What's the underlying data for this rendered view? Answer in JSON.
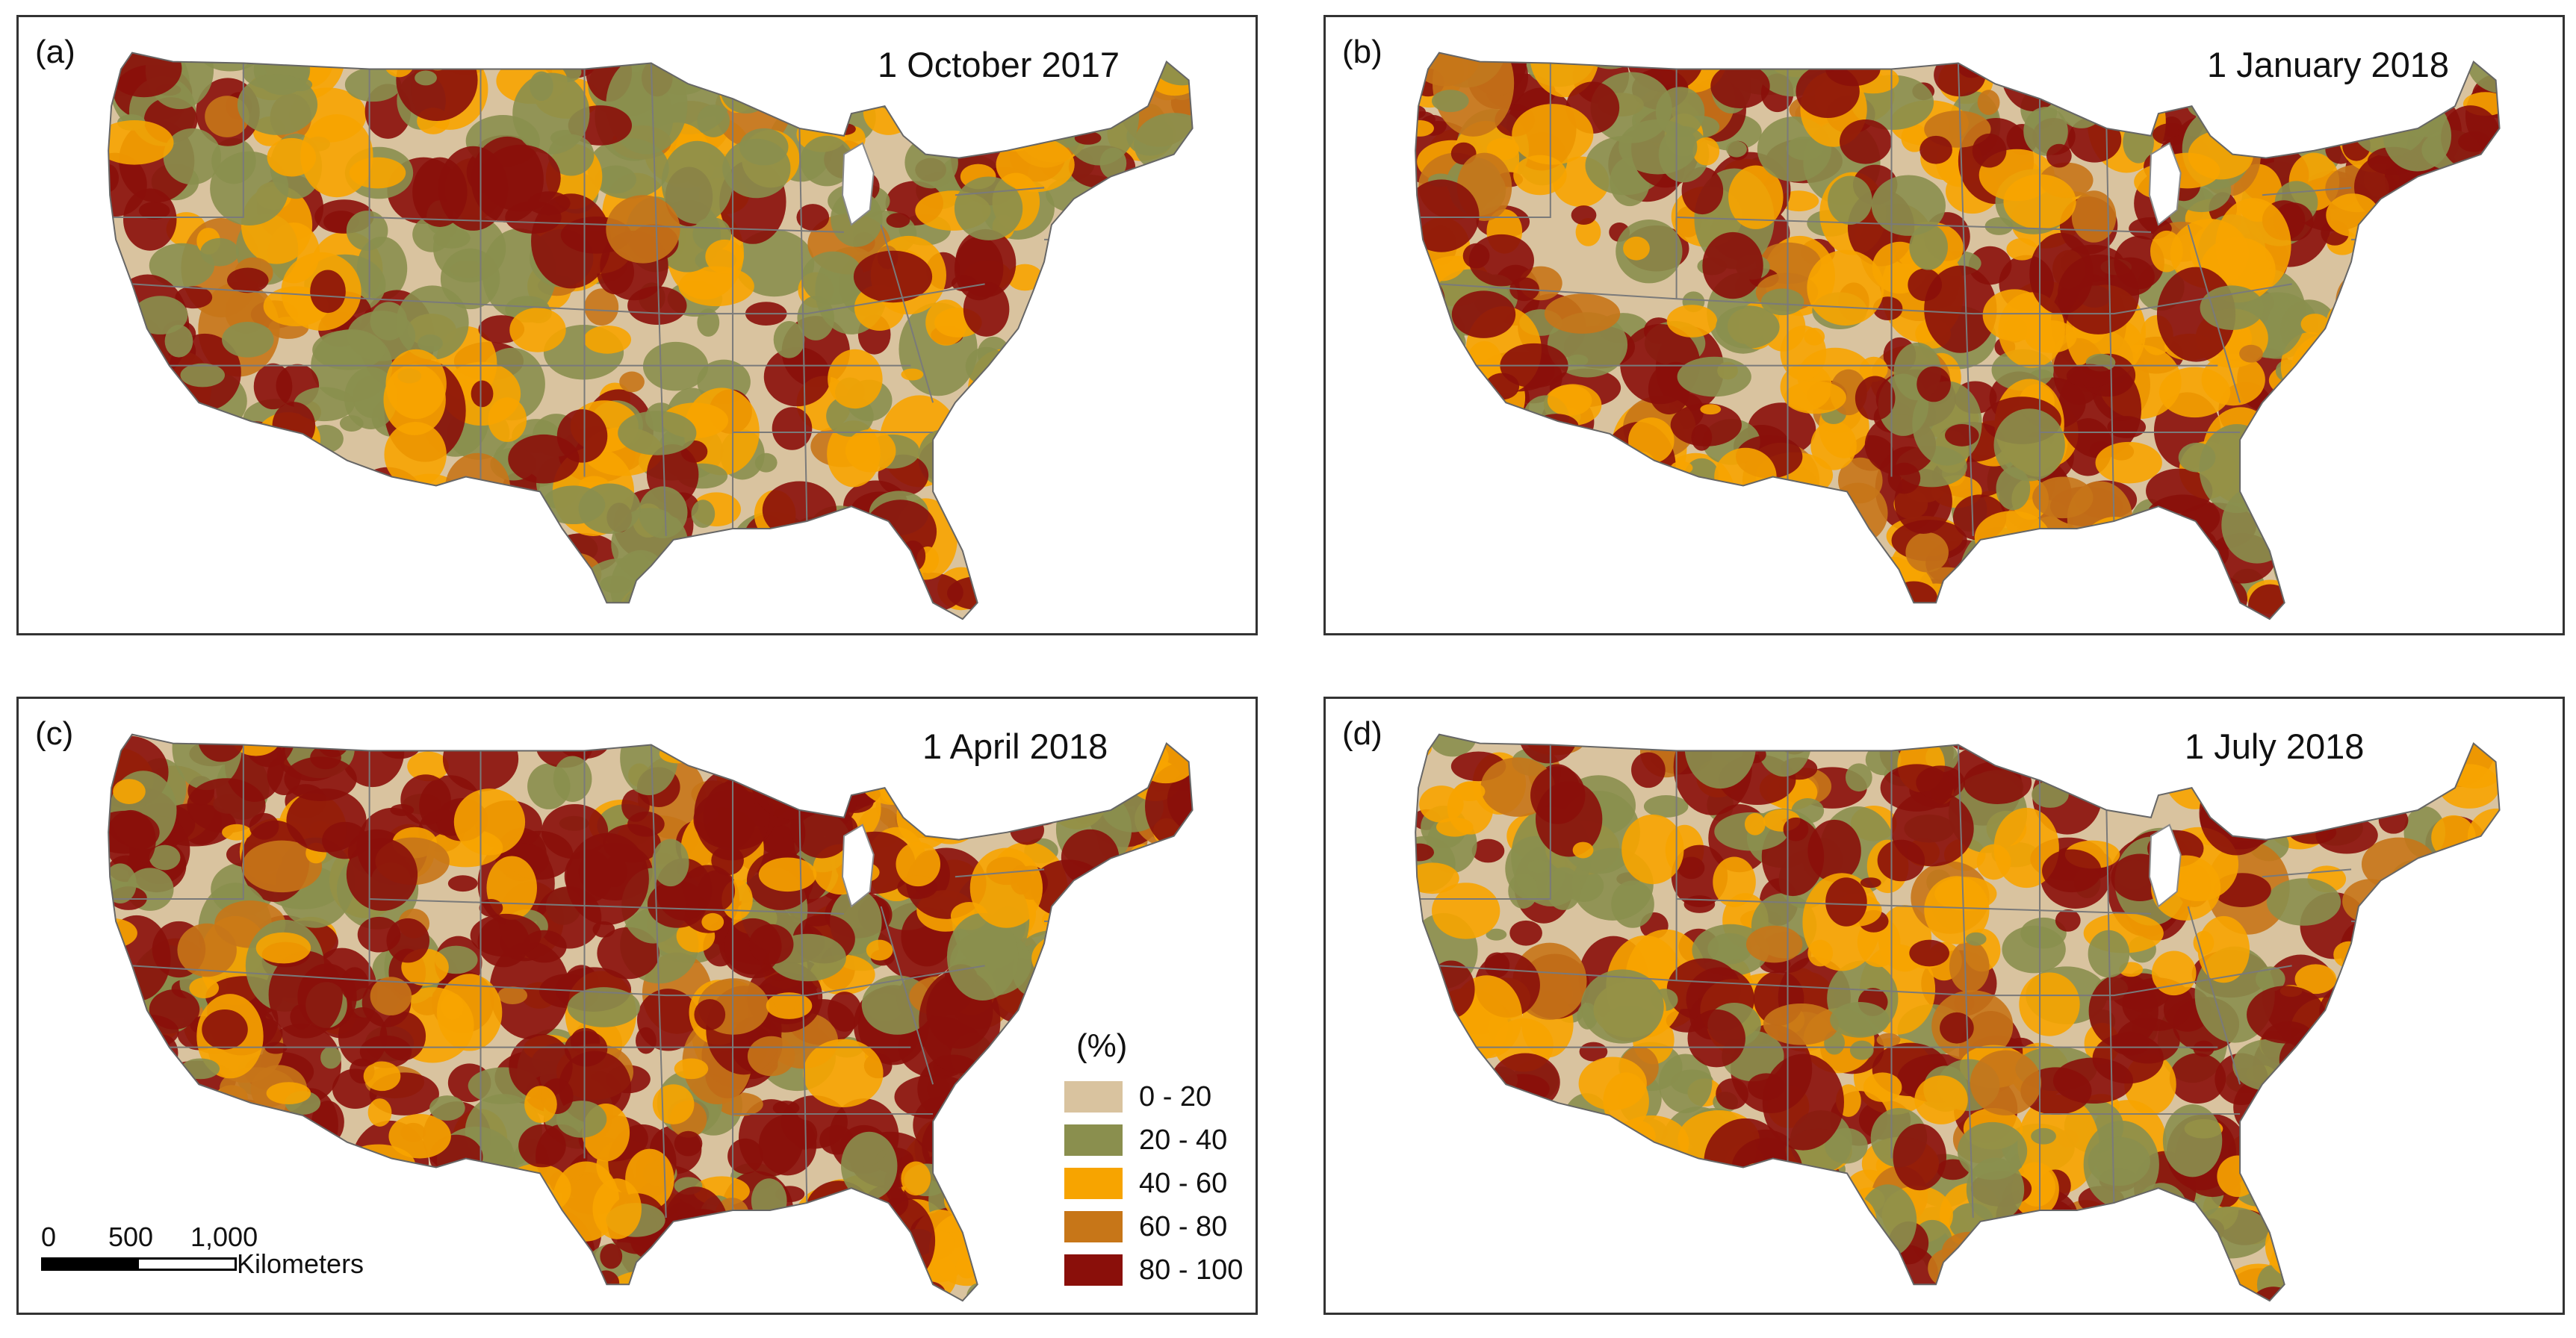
{
  "panels": [
    {
      "letter": "(a)",
      "date": "1 October 2017"
    },
    {
      "letter": "(b)",
      "date": "1 January 2018"
    },
    {
      "letter": "(c)",
      "date": "1 April 2018"
    },
    {
      "letter": "(d)",
      "date": "1 July 2018"
    }
  ],
  "legend": {
    "title": "(%)",
    "classes": [
      {
        "label": "0 - 20",
        "color": "#d9c39f"
      },
      {
        "label": "20 - 40",
        "color": "#8a8f4e"
      },
      {
        "label": "40 - 60",
        "color": "#f7a400"
      },
      {
        "label": "60 - 80",
        "color": "#c77618"
      },
      {
        "label": "80 - 100",
        "color": "#8a0f0a"
      }
    ]
  },
  "scalebar": {
    "ticks": [
      "0",
      "500",
      "1,000"
    ],
    "unit": "Kilometers"
  },
  "colors": {
    "border": "#333333",
    "state_lines": "#7a7a7a"
  }
}
